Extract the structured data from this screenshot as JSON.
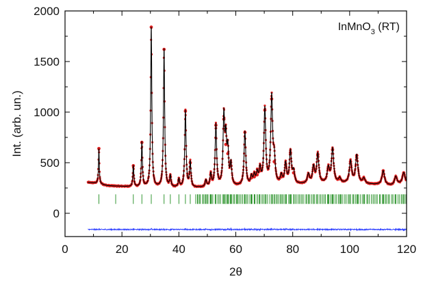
{
  "chart_data": {
    "type": "line",
    "xlabel": "2θ",
    "ylabel": "Int. (arb. un.)",
    "xlim": [
      0,
      120
    ],
    "ylim": [
      -230,
      2000
    ],
    "x_ticks": [
      0,
      20,
      40,
      60,
      80,
      100,
      120
    ],
    "y_ticks": [
      0,
      500,
      1000,
      1500,
      2000
    ],
    "grid": false,
    "annotation": {
      "main": "InMnO",
      "sub": "3",
      "suffix": " (RT)"
    },
    "x_range_data": [
      8,
      120
    ],
    "background": [
      {
        "x": 8,
        "y": 305
      },
      {
        "x": 11,
        "y": 295
      },
      {
        "x": 15,
        "y": 272
      },
      {
        "x": 25,
        "y": 258
      },
      {
        "x": 35,
        "y": 252
      },
      {
        "x": 45,
        "y": 250
      },
      {
        "x": 60,
        "y": 262
      },
      {
        "x": 70,
        "y": 272
      },
      {
        "x": 80,
        "y": 282
      },
      {
        "x": 90,
        "y": 292
      },
      {
        "x": 100,
        "y": 292
      },
      {
        "x": 110,
        "y": 282
      },
      {
        "x": 115,
        "y": 272
      },
      {
        "x": 120,
        "y": 295
      }
    ],
    "peaks": [
      {
        "x": 11.9,
        "y": 640
      },
      {
        "x": 24.0,
        "y": 470
      },
      {
        "x": 27.0,
        "y": 700
      },
      {
        "x": 30.3,
        "y": 1840
      },
      {
        "x": 34.8,
        "y": 1620
      },
      {
        "x": 37.0,
        "y": 360
      },
      {
        "x": 40.0,
        "y": 330
      },
      {
        "x": 42.3,
        "y": 1010
      },
      {
        "x": 44.0,
        "y": 500
      },
      {
        "x": 49.5,
        "y": 320
      },
      {
        "x": 51.2,
        "y": 380
      },
      {
        "x": 53.0,
        "y": 870
      },
      {
        "x": 55.8,
        "y": 930
      },
      {
        "x": 56.5,
        "y": 680
      },
      {
        "x": 57.2,
        "y": 590
      },
      {
        "x": 58.3,
        "y": 470
      },
      {
        "x": 63.2,
        "y": 800
      },
      {
        "x": 65.5,
        "y": 350
      },
      {
        "x": 66.5,
        "y": 360
      },
      {
        "x": 67.5,
        "y": 380
      },
      {
        "x": 68.5,
        "y": 420
      },
      {
        "x": 70.2,
        "y": 1020
      },
      {
        "x": 72.6,
        "y": 1130
      },
      {
        "x": 73.5,
        "y": 510
      },
      {
        "x": 76.0,
        "y": 360
      },
      {
        "x": 77.5,
        "y": 480
      },
      {
        "x": 79.2,
        "y": 600
      },
      {
        "x": 80.3,
        "y": 400
      },
      {
        "x": 85.5,
        "y": 380
      },
      {
        "x": 87.3,
        "y": 450
      },
      {
        "x": 88.8,
        "y": 580
      },
      {
        "x": 92.5,
        "y": 440
      },
      {
        "x": 94.0,
        "y": 630
      },
      {
        "x": 96.5,
        "y": 340
      },
      {
        "x": 100.3,
        "y": 510
      },
      {
        "x": 102.5,
        "y": 570
      },
      {
        "x": 105.0,
        "y": 340
      },
      {
        "x": 111.8,
        "y": 420
      },
      {
        "x": 116.2,
        "y": 360
      },
      {
        "x": 119.0,
        "y": 400
      }
    ],
    "bragg_marker_y": 140,
    "bragg_positions": [
      11.9,
      17.8,
      24.0,
      27.0,
      30.3,
      34.8,
      37.0,
      40.0,
      42.3,
      44.0,
      46.5,
      49.5,
      51.2,
      53.0,
      55.8,
      56.5,
      57.2,
      58.3,
      60.5,
      63.2,
      65.5,
      66.5,
      67.5,
      68.5,
      70.2,
      72.6,
      73.5,
      76.0,
      77.5,
      79.2,
      80.3,
      85.5,
      87.3,
      88.8,
      92.5,
      94.0,
      96.5,
      100.3,
      102.5,
      105.0,
      111.8,
      116.2,
      119.0
    ],
    "difference_baseline_y": -160,
    "colors": {
      "observed": "#e02020",
      "calculated": "#000000",
      "bragg": "#1e8c1e",
      "difference": "#2a3cff",
      "axis": "#000000"
    }
  }
}
